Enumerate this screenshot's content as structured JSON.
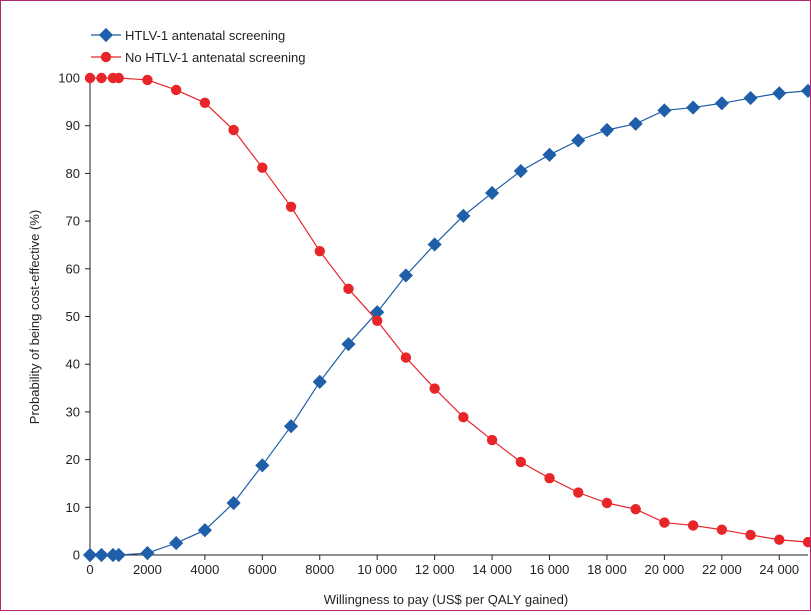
{
  "chart_data": {
    "type": "line",
    "xlabel": "Willingness to pay (US$ per QALY gained)",
    "ylabel": "Probability of being cost-effective (%)",
    "xlim": [
      0,
      25000
    ],
    "ylim": [
      0,
      100
    ],
    "x_ticks": [
      0,
      2000,
      4000,
      6000,
      8000,
      10000,
      12000,
      14000,
      16000,
      18000,
      20000,
      22000,
      24000
    ],
    "x_tick_labels": [
      "0",
      "2000",
      "4000",
      "6000",
      "8000",
      "10 000",
      "12 000",
      "14 000",
      "16 000",
      "18 000",
      "20 000",
      "22 000",
      "24 000"
    ],
    "y_ticks": [
      0,
      10,
      20,
      30,
      40,
      50,
      60,
      70,
      80,
      90,
      100
    ],
    "y_tick_labels": [
      "0",
      "10",
      "20",
      "30",
      "40",
      "50",
      "60",
      "70",
      "80",
      "90",
      "100"
    ],
    "grid": false,
    "legend": "top-left",
    "series": [
      {
        "name": "HTLV-1 antenatal screening",
        "marker": "diamond",
        "color": "#1f5ea8",
        "x": [
          0,
          400,
          800,
          1000,
          2000,
          3000,
          4000,
          5000,
          6000,
          7000,
          8000,
          9000,
          10000,
          11000,
          12000,
          13000,
          14000,
          15000,
          16000,
          17000,
          18000,
          19000,
          20000,
          21000,
          22000,
          23000,
          24000,
          25000
        ],
        "y": [
          0,
          0,
          0,
          0,
          0.4,
          2.5,
          5.2,
          10.9,
          18.8,
          27.0,
          36.3,
          44.2,
          50.9,
          58.6,
          65.1,
          71.1,
          75.9,
          80.5,
          83.9,
          86.9,
          89.1,
          90.4,
          93.2,
          93.8,
          94.7,
          95.8,
          96.8,
          97.3
        ]
      },
      {
        "name": "No HTLV-1 antenatal screening",
        "marker": "circle",
        "color": "#e8262a",
        "x": [
          0,
          400,
          800,
          1000,
          2000,
          3000,
          4000,
          5000,
          6000,
          7000,
          8000,
          9000,
          10000,
          11000,
          12000,
          13000,
          14000,
          15000,
          16000,
          17000,
          18000,
          19000,
          20000,
          21000,
          22000,
          23000,
          24000,
          25000
        ],
        "y": [
          100,
          100,
          100,
          100,
          99.6,
          97.5,
          94.8,
          89.1,
          81.2,
          73.0,
          63.7,
          55.8,
          49.1,
          41.4,
          34.9,
          28.9,
          24.1,
          19.5,
          16.1,
          13.1,
          10.9,
          9.6,
          6.8,
          6.2,
          5.3,
          4.2,
          3.2,
          2.7
        ]
      }
    ]
  }
}
